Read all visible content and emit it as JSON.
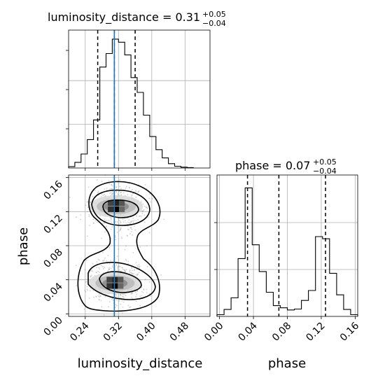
{
  "chart_data": [
    {
      "type": "histogram",
      "panel": "top-left",
      "title_main": "luminosity_distance = 0.31",
      "title_sup": "+0.05",
      "title_sub": "−0.04",
      "xlim": [
        0.2,
        0.54
      ],
      "bin_edges": [
        0.2,
        0.215,
        0.23,
        0.245,
        0.26,
        0.275,
        0.29,
        0.305,
        0.32,
        0.335,
        0.35,
        0.365,
        0.38,
        0.395,
        0.41,
        0.425,
        0.44,
        0.455,
        0.47,
        0.485,
        0.5
      ],
      "counts": [
        0.3,
        1.3,
        3.2,
        6.5,
        11.0,
        23.1,
        26.2,
        29.5,
        28.8,
        25.9,
        20.7,
        17.3,
        12.1,
        7.2,
        4.2,
        2.3,
        1.0,
        0.4,
        0.2,
        0.1
      ],
      "quantiles": [
        0.27,
        0.31,
        0.36
      ],
      "truth": 0.31
    },
    {
      "type": "histogram",
      "panel": "bottom-right",
      "title_main": "phase = 0.07",
      "title_sup": "+0.05",
      "title_sub": "−0.04",
      "xlabel": "phase",
      "xlim": [
        -0.003,
        0.163
      ],
      "xticks": [
        "0.00",
        "0.04",
        "0.08",
        "0.12",
        "0.16"
      ],
      "bin_edges": [
        -0.003,
        0.0053,
        0.0136,
        0.0219,
        0.0302,
        0.0385,
        0.0468,
        0.0551,
        0.0634,
        0.0717,
        0.08,
        0.0883,
        0.0966,
        0.1049,
        0.1132,
        0.1215,
        0.1298,
        0.1381,
        0.1464,
        0.1547,
        0.163
      ],
      "counts": [
        0.4,
        1.6,
        4.3,
        13.4,
        29.8,
        16.6,
        10.4,
        5.6,
        2.5,
        2.0,
        1.5,
        1.7,
        3.7,
        6.0,
        18.5,
        18.0,
        10.0,
        5.0,
        1.6,
        0.4
      ],
      "quantiles": [
        0.033,
        0.07,
        0.125
      ]
    },
    {
      "type": "scatter",
      "panel": "bottom-left",
      "xlabel": "luminosity_distance",
      "ylabel": "phase",
      "xlim": [
        0.2,
        0.54
      ],
      "ylim": [
        -0.003,
        0.163
      ],
      "xticks": [
        "0.24",
        "0.32",
        "0.40",
        "0.48"
      ],
      "yticks": [
        "0.00",
        "0.04",
        "0.08",
        "0.12",
        "0.16"
      ],
      "truth_x": 0.31,
      "density_peaks": [
        {
          "x": 0.315,
          "y": 0.036
        },
        {
          "x": 0.318,
          "y": 0.126
        }
      ]
    }
  ],
  "colors": {
    "truth": "#1f77b4",
    "points": "#9a9a9a",
    "contour": "#000000"
  }
}
